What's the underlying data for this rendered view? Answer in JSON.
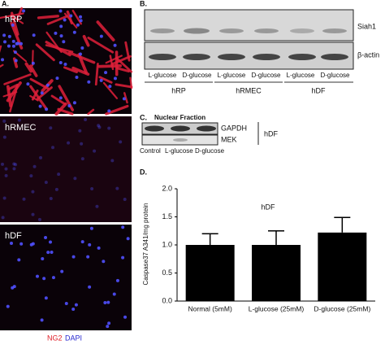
{
  "panel_a": {
    "label": "A.",
    "images": [
      "hRP",
      "hRMEC",
      "hDF"
    ],
    "legend": [
      "NG2",
      "DAPI"
    ]
  },
  "panel_b": {
    "label": "B.",
    "bands": [
      "Siah1",
      "β-actin"
    ],
    "lanes": [
      "L-glucose",
      "D-glucose",
      "L-glucose",
      "D-glucose",
      "L-glucose",
      "D-glucose"
    ],
    "groups": [
      "hRP",
      "hRMEC",
      "hDF"
    ]
  },
  "panel_c": {
    "label": "C.",
    "title": "Nuclear Fraction",
    "bands": [
      "GAPDH",
      "MEK"
    ],
    "group": "hDF",
    "lanes": [
      "Control",
      "L-glucose",
      "D-glucose"
    ]
  },
  "chart_data": {
    "type": "bar",
    "panel_label": "D.",
    "title": "hDF",
    "y_label": "Caspase37 A341/mg protein",
    "categories": [
      "Normal (5mM)",
      "L-glucose (25mM)",
      "D-glucose (25mM)"
    ],
    "values": [
      1.0,
      1.0,
      1.22
    ],
    "errors": [
      0.2,
      0.25,
      0.27
    ],
    "color": "#000000",
    "ylim": [
      0,
      2
    ],
    "yticks": [
      {
        "value": 0,
        "label": "0.0"
      },
      {
        "value": 0.5,
        "label": "0.5"
      },
      {
        "value": 1,
        "label": "1.0"
      },
      {
        "value": 1.5,
        "label": "1.5"
      },
      {
        "value": 2,
        "label": "2.0"
      }
    ]
  }
}
